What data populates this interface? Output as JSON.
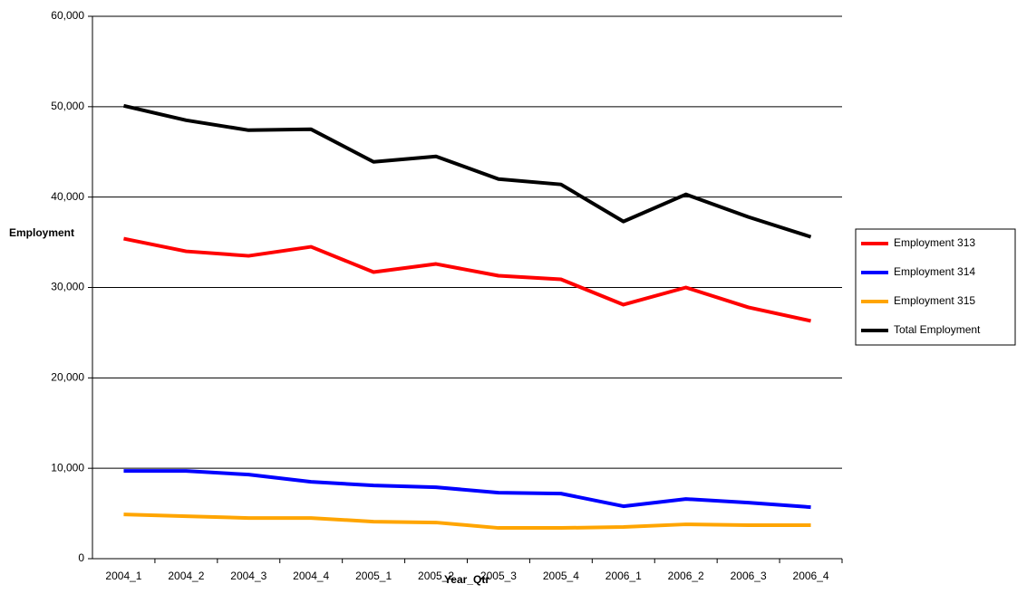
{
  "chart_data": {
    "type": "line",
    "x_label": "Year_Qtr",
    "y_label": "Employment",
    "categories": [
      "2004_1",
      "2004_2",
      "2004_3",
      "2004_4",
      "2005_1",
      "2005_2",
      "2005_3",
      "2005_4",
      "2006_1",
      "2006_2",
      "2006_3",
      "2006_4"
    ],
    "series": [
      {
        "name": "Employment 313",
        "color": "#ff0000",
        "values": [
          35400,
          34000,
          33500,
          34500,
          31700,
          32600,
          31300,
          30900,
          28100,
          30000,
          27800,
          26300
        ]
      },
      {
        "name": "Employment 314",
        "color": "#0000ff",
        "values": [
          9700,
          9700,
          9300,
          8500,
          8100,
          7900,
          7300,
          7200,
          5800,
          6600,
          6200,
          5700
        ]
      },
      {
        "name": "Employment 315",
        "color": "#ffa500",
        "values": [
          4900,
          4700,
          4500,
          4500,
          4100,
          4000,
          3400,
          3400,
          3500,
          3800,
          3700,
          3700
        ]
      },
      {
        "name": "Total Employment",
        "color": "#000000",
        "values": [
          50100,
          48500,
          47400,
          47500,
          43900,
          44500,
          42000,
          41400,
          37300,
          40300,
          37800,
          35600
        ]
      }
    ],
    "ylim": [
      0,
      60000
    ],
    "yticks": [
      0,
      {
        "value": 10000,
        "label": "10,000"
      },
      {
        "value": 20000,
        "label": "20,000"
      },
      {
        "value": 30000,
        "label": "30,000"
      },
      {
        "value": 40000,
        "label": "40,000"
      },
      {
        "value": 50000,
        "label": "50,000"
      },
      {
        "value": 60000,
        "label": "60,000"
      }
    ],
    "grid": true,
    "legend": "right"
  }
}
